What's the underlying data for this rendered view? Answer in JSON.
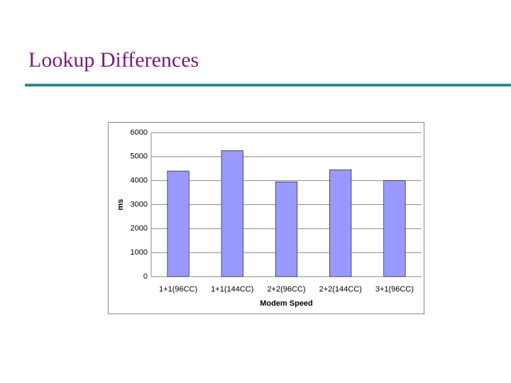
{
  "slide": {
    "title": "Lookup Differences"
  },
  "chart_data": {
    "type": "bar",
    "categories": [
      "1+1(96CC)",
      "1+1(144CC)",
      "2+2(96CC)",
      "2+2(144CC)",
      "3+1(96CC)"
    ],
    "values": [
      4400,
      5250,
      3950,
      4450,
      4000
    ],
    "color": "#9999ff",
    "x_label": "Modem Speed",
    "y_label": "ms",
    "ylim": [
      0,
      6000
    ],
    "yticks": [
      0,
      1000,
      2000,
      3000,
      4000,
      5000,
      6000
    ],
    "grid": true
  }
}
